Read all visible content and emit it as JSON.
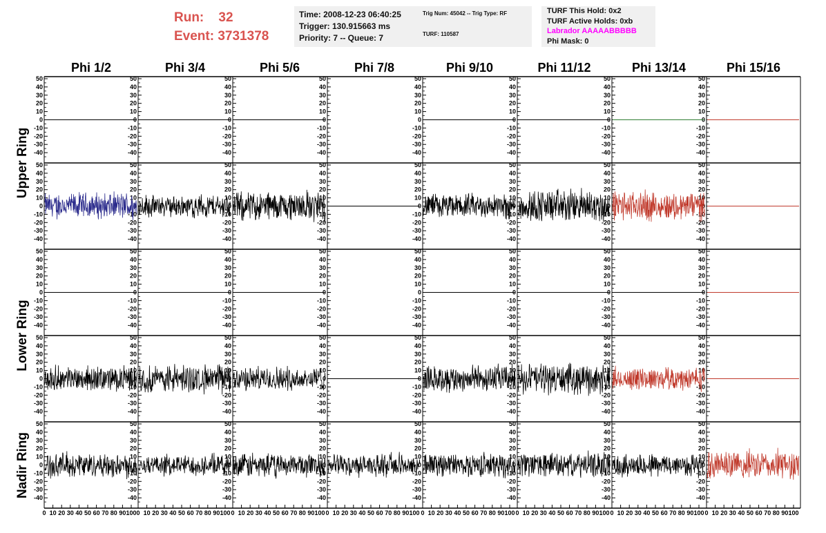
{
  "header": {
    "run_label": "Run:",
    "run_value": "32",
    "event_label": "Event:",
    "event_value": "3731378",
    "timing": {
      "time": "Time: 2008-12-23 06:40:25",
      "trigger": "Trigger: 130.915663 ms",
      "priority": "Priority: 7 -- Queue: 7"
    },
    "trig": {
      "trig_line": "Trig Num: 45042 -- Trig Type: RF",
      "turf_line": "TURF: 110587"
    },
    "turf": {
      "this_hold": "TURF This Hold: 0x2",
      "active_holds": "TURF Active Holds: 0xb",
      "labrador": "Labrador AAAAABBBBB",
      "phi_mask": "Phi Mask: 0"
    }
  },
  "colors": {
    "header_red": "#d9534f",
    "panel_bg": "#f0f0f0",
    "labrador": "#ff00ff",
    "trace_black": "#000000",
    "trace_blue": "#2b2b8c",
    "trace_red": "#c0392b",
    "trace_green": "#2e7d32"
  },
  "chart_data": {
    "type": "line",
    "columns": [
      "Phi 1/2",
      "Phi 3/4",
      "Phi 5/6",
      "Phi 7/8",
      "Phi 9/10",
      "Phi 11/12",
      "Phi 13/14",
      "Phi 15/16"
    ],
    "rows": [
      "Upper Ring",
      "Lower Ring",
      "Nadir Ring"
    ],
    "ylim": [
      -50,
      50
    ],
    "xlim": [
      0,
      100
    ],
    "y_ticks": [
      50,
      40,
      30,
      20,
      10,
      0,
      -10,
      -20,
      -30,
      -40
    ],
    "x_ticks": [
      0,
      10,
      20,
      30,
      40,
      50,
      60,
      70,
      80,
      90,
      100
    ],
    "x_tick_labels": [
      "0",
      "10",
      "20",
      "30",
      "40",
      "50",
      "60",
      "70",
      "80",
      "90",
      "100"
    ],
    "grid": false,
    "panels": [
      {
        "ring": "Upper Ring",
        "sub": 0,
        "traces": [
          "flat",
          "flat",
          "flat",
          "none",
          "flat",
          "flat",
          "flat-green",
          "flat-red"
        ]
      },
      {
        "ring": "Upper Ring",
        "sub": 1,
        "traces": [
          "noise-blue",
          "noise",
          "noise",
          "flat",
          "noise",
          "noise",
          "noise-red",
          "flat-red"
        ],
        "amplitude": [
          17,
          14,
          20,
          0,
          16,
          22,
          19,
          0
        ]
      },
      {
        "ring": "Lower Ring",
        "sub": 0,
        "traces": [
          "flat",
          "flat",
          "flat",
          "none",
          "flat",
          "flat",
          "flat",
          "flat-red"
        ]
      },
      {
        "ring": "Lower Ring",
        "sub": 1,
        "traces": [
          "noise",
          "noise",
          "noise",
          "flat",
          "noise",
          "noise",
          "noise-red",
          "flat-red"
        ],
        "amplitude": [
          16,
          18,
          15,
          0,
          18,
          20,
          15,
          0
        ]
      },
      {
        "ring": "Nadir Ring",
        "sub": 0,
        "traces": [
          "noise",
          "noise",
          "noise",
          "noise",
          "noise",
          "noise",
          "noise",
          "noise-red"
        ],
        "amplitude": [
          16,
          13,
          16,
          14,
          15,
          16,
          15,
          19
        ]
      }
    ]
  }
}
